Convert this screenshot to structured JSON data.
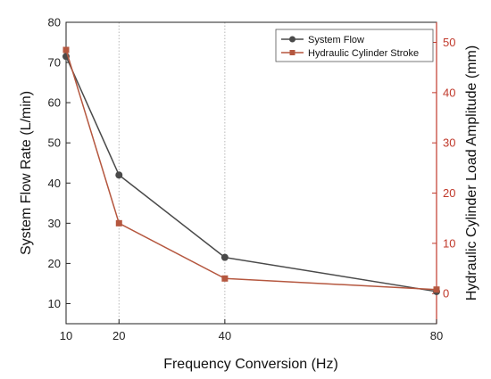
{
  "chart_data": {
    "type": "line",
    "x_axis": {
      "label": "Frequency Conversion (Hz)",
      "range": [
        10,
        80
      ],
      "ticks": [
        10,
        20,
        40,
        80
      ],
      "grid": true
    },
    "y_left": {
      "label": "System Flow Rate (L/min)",
      "range": [
        5,
        80
      ],
      "ticks": [
        10,
        20,
        30,
        40,
        50,
        60,
        70,
        80
      ],
      "color": "#000000"
    },
    "y_right": {
      "label": "Hydraulic Cylinder Load Amplitude (mm)",
      "range": [
        -6,
        54
      ],
      "ticks": [
        0,
        10,
        20,
        30,
        40,
        50
      ],
      "color": "#c0392b"
    },
    "series": [
      {
        "name": "System Flow",
        "axis": "left",
        "color": "#4a4a4a",
        "marker": "circle",
        "x": [
          10,
          20,
          40,
          80
        ],
        "y": [
          71.5,
          42,
          21.5,
          13
        ]
      },
      {
        "name": "Hydraulic Cylinder Stroke",
        "axis": "right",
        "color": "#b5573f",
        "marker": "square",
        "x": [
          10,
          20,
          40,
          80
        ],
        "y": [
          48.5,
          14,
          3,
          0.8
        ]
      }
    ],
    "legend": {
      "placement": "top-right"
    }
  }
}
